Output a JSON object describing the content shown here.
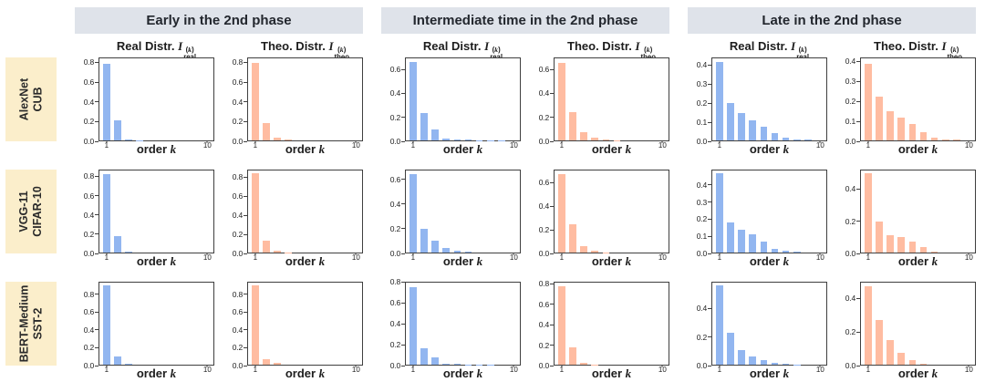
{
  "figure": {
    "headers": [
      "Early in the 2nd phase",
      "Intermediate time in the 2nd phase",
      "Late in the 2nd phase"
    ],
    "rows": [
      {
        "id": "alexnet-cub",
        "label_lines": [
          "AlexNet",
          "CUB"
        ]
      },
      {
        "id": "vgg11-cifar10",
        "label_lines": [
          "VGG-11",
          "CIFAR-10"
        ]
      },
      {
        "id": "bert-medium-sst2",
        "label_lines": [
          "BERT-Medium",
          "SST-2"
        ]
      }
    ],
    "series_meta": {
      "real": {
        "title_prefix": "Real Distr.",
        "symbol": "I",
        "sup": "(k)",
        "sub": "real"
      },
      "theo": {
        "title_prefix": "Theo. Distr.",
        "symbol": "I",
        "sup": "(k)",
        "sub": "theo"
      }
    },
    "xaxis": {
      "label": "order",
      "label_var": "k",
      "first_tick": "1",
      "last_tick": "10"
    },
    "colors": {
      "real_bar": "#92b6f0",
      "theo_bar": "#ffbca1",
      "header_bg": "#dfe3ea",
      "row_label_bg": "#fbeecb",
      "axis": "#3f3f3f",
      "text": "#222222"
    }
  },
  "chart_data": [
    {
      "type": "bar",
      "row": "AlexNet CUB",
      "phase": "Early in the 2nd phase",
      "series": "real",
      "title": "Real Distr. I_real^(k)",
      "xlabel": "order k",
      "k_range": [
        1,
        10
      ],
      "yticks": [
        0.0,
        0.2,
        0.4,
        0.6,
        0.8
      ],
      "ylim": [
        0,
        0.85
      ],
      "values": [
        0.79,
        0.21,
        0.012,
        0.004
      ]
    },
    {
      "type": "bar",
      "row": "AlexNet CUB",
      "phase": "Early in the 2nd phase",
      "series": "theo",
      "title": "Theo. Distr. I_theo^(k)",
      "xlabel": "order k",
      "k_range": [
        1,
        10
      ],
      "yticks": [
        0.0,
        0.2,
        0.4,
        0.6,
        0.8
      ],
      "ylim": [
        0,
        0.85
      ],
      "values": [
        0.8,
        0.18,
        0.032,
        0.006
      ]
    },
    {
      "type": "bar",
      "row": "AlexNet CUB",
      "phase": "Intermediate time in the 2nd phase",
      "series": "real",
      "title": "Real Distr. I_real^(k)",
      "xlabel": "order k",
      "k_range": [
        1,
        10
      ],
      "yticks": [
        0.0,
        0.2,
        0.4,
        0.6
      ],
      "ylim": [
        0,
        0.7
      ],
      "values": [
        0.67,
        0.23,
        0.09,
        0.016,
        0.006,
        0.005,
        0.004,
        0.003,
        0.002
      ]
    },
    {
      "type": "bar",
      "row": "AlexNet CUB",
      "phase": "Intermediate time in the 2nd phase",
      "series": "theo",
      "title": "Theo. Distr. I_theo^(k)",
      "xlabel": "order k",
      "k_range": [
        1,
        10
      ],
      "yticks": [
        0.0,
        0.2,
        0.4,
        0.6
      ],
      "ylim": [
        0,
        0.7
      ],
      "values": [
        0.66,
        0.245,
        0.07,
        0.026,
        0.007,
        0.002
      ]
    },
    {
      "type": "bar",
      "row": "AlexNet CUB",
      "phase": "Late in the 2nd phase",
      "series": "real",
      "title": "Real Distr. I_real^(k)",
      "xlabel": "order k",
      "k_range": [
        1,
        10
      ],
      "yticks": [
        0.0,
        0.1,
        0.2,
        0.3,
        0.4
      ],
      "ylim": [
        0,
        0.44
      ],
      "values": [
        0.42,
        0.2,
        0.145,
        0.11,
        0.075,
        0.04,
        0.016,
        0.006,
        0.003
      ]
    },
    {
      "type": "bar",
      "row": "AlexNet CUB",
      "phase": "Late in the 2nd phase",
      "series": "theo",
      "title": "Theo. Distr. I_theo^(k)",
      "xlabel": "order k",
      "k_range": [
        1,
        10
      ],
      "yticks": [
        0.0,
        0.1,
        0.2,
        0.3,
        0.4
      ],
      "ylim": [
        0,
        0.42
      ],
      "values": [
        0.39,
        0.225,
        0.15,
        0.115,
        0.085,
        0.04,
        0.016,
        0.005,
        0.003
      ]
    },
    {
      "type": "bar",
      "row": "VGG-11 CIFAR-10",
      "phase": "Early in the 2nd phase",
      "series": "real",
      "title": "Real Distr. I_real^(k)",
      "xlabel": "order k",
      "k_range": [
        1,
        10
      ],
      "yticks": [
        0.0,
        0.2,
        0.4,
        0.6,
        0.8
      ],
      "ylim": [
        0,
        0.87
      ],
      "values": [
        0.83,
        0.17,
        0.005
      ]
    },
    {
      "type": "bar",
      "row": "VGG-11 CIFAR-10",
      "phase": "Early in the 2nd phase",
      "series": "theo",
      "title": "Theo. Distr. I_theo^(k)",
      "xlabel": "order k",
      "k_range": [
        1,
        10
      ],
      "yticks": [
        0.0,
        0.2,
        0.4,
        0.6,
        0.8
      ],
      "ylim": [
        0,
        0.88
      ],
      "values": [
        0.85,
        0.13,
        0.02,
        0.004
      ]
    },
    {
      "type": "bar",
      "row": "VGG-11 CIFAR-10",
      "phase": "Intermediate time in the 2nd phase",
      "series": "real",
      "title": "Real Distr. I_real^(k)",
      "xlabel": "order k",
      "k_range": [
        1,
        10
      ],
      "yticks": [
        0.0,
        0.2,
        0.4,
        0.6
      ],
      "ylim": [
        0,
        0.68
      ],
      "values": [
        0.65,
        0.195,
        0.1,
        0.04,
        0.016,
        0.004
      ]
    },
    {
      "type": "bar",
      "row": "VGG-11 CIFAR-10",
      "phase": "Intermediate time in the 2nd phase",
      "series": "theo",
      "title": "Theo. Distr. I_theo^(k)",
      "xlabel": "order k",
      "k_range": [
        1,
        10
      ],
      "yticks": [
        0.0,
        0.2,
        0.4,
        0.6
      ],
      "ylim": [
        0,
        0.71
      ],
      "values": [
        0.68,
        0.245,
        0.055,
        0.013,
        0.003
      ]
    },
    {
      "type": "bar",
      "row": "VGG-11 CIFAR-10",
      "phase": "Late in the 2nd phase",
      "series": "real",
      "title": "Real Distr. I_real^(k)",
      "xlabel": "order k",
      "k_range": [
        1,
        10
      ],
      "yticks": [
        0.0,
        0.1,
        0.2,
        0.3,
        0.4
      ],
      "ylim": [
        0,
        0.49
      ],
      "values": [
        0.475,
        0.18,
        0.135,
        0.11,
        0.065,
        0.022,
        0.009,
        0.004
      ]
    },
    {
      "type": "bar",
      "row": "VGG-11 CIFAR-10",
      "phase": "Late in the 2nd phase",
      "series": "theo",
      "title": "Theo. Distr. I_theo^(k)",
      "xlabel": "order k",
      "k_range": [
        1,
        10
      ],
      "yticks": [
        0.0,
        0.2,
        0.4
      ],
      "ylim": [
        0,
        0.52
      ],
      "values": [
        0.5,
        0.195,
        0.11,
        0.1,
        0.07,
        0.032,
        0.004
      ]
    },
    {
      "type": "bar",
      "row": "BERT-Medium SST-2",
      "phase": "Early in the 2nd phase",
      "series": "real",
      "title": "Real Distr. I_real^(k)",
      "xlabel": "order k",
      "k_range": [
        1,
        10
      ],
      "yticks": [
        0.0,
        0.2,
        0.4,
        0.6,
        0.8
      ],
      "ylim": [
        0,
        0.94
      ],
      "values": [
        0.91,
        0.09,
        0.006
      ]
    },
    {
      "type": "bar",
      "row": "BERT-Medium SST-2",
      "phase": "Early in the 2nd phase",
      "series": "theo",
      "title": "Theo. Distr. I_theo^(k)",
      "xlabel": "order k",
      "k_range": [
        1,
        10
      ],
      "yticks": [
        0.0,
        0.2,
        0.4,
        0.6,
        0.8
      ],
      "ylim": [
        0,
        0.94
      ],
      "values": [
        0.91,
        0.062,
        0.02
      ]
    },
    {
      "type": "bar",
      "row": "BERT-Medium SST-2",
      "phase": "Intermediate time in the 2nd phase",
      "series": "real",
      "title": "Real Distr. I_real^(k)",
      "xlabel": "order k",
      "k_range": [
        1,
        10
      ],
      "yticks": [
        0.0,
        0.2,
        0.4,
        0.6,
        0.8
      ],
      "ylim": [
        0,
        0.8
      ],
      "values": [
        0.76,
        0.16,
        0.072,
        0.012,
        0.005,
        0.004,
        0.003,
        0.002
      ]
    },
    {
      "type": "bar",
      "row": "BERT-Medium SST-2",
      "phase": "Intermediate time in the 2nd phase",
      "series": "theo",
      "title": "Theo. Distr. I_theo^(k)",
      "xlabel": "order k",
      "k_range": [
        1,
        10
      ],
      "yticks": [
        0.0,
        0.2,
        0.4,
        0.6,
        0.8
      ],
      "ylim": [
        0,
        0.82
      ],
      "values": [
        0.78,
        0.17,
        0.016,
        0.004
      ]
    },
    {
      "type": "bar",
      "row": "BERT-Medium SST-2",
      "phase": "Late in the 2nd phase",
      "series": "real",
      "title": "Real Distr. I_real^(k)",
      "xlabel": "order k",
      "k_range": [
        1,
        10
      ],
      "yticks": [
        0.0,
        0.2,
        0.4
      ],
      "ylim": [
        0,
        0.585
      ],
      "values": [
        0.565,
        0.23,
        0.105,
        0.06,
        0.035,
        0.016,
        0.006,
        0.003
      ]
    },
    {
      "type": "bar",
      "row": "BERT-Medium SST-2",
      "phase": "Late in the 2nd phase",
      "series": "theo",
      "title": "Theo. Distr. I_theo^(k)",
      "xlabel": "order k",
      "k_range": [
        1,
        10
      ],
      "yticks": [
        0.0,
        0.2,
        0.4
      ],
      "ylim": [
        0,
        0.5
      ],
      "values": [
        0.48,
        0.27,
        0.15,
        0.075,
        0.026,
        0.006
      ]
    }
  ]
}
